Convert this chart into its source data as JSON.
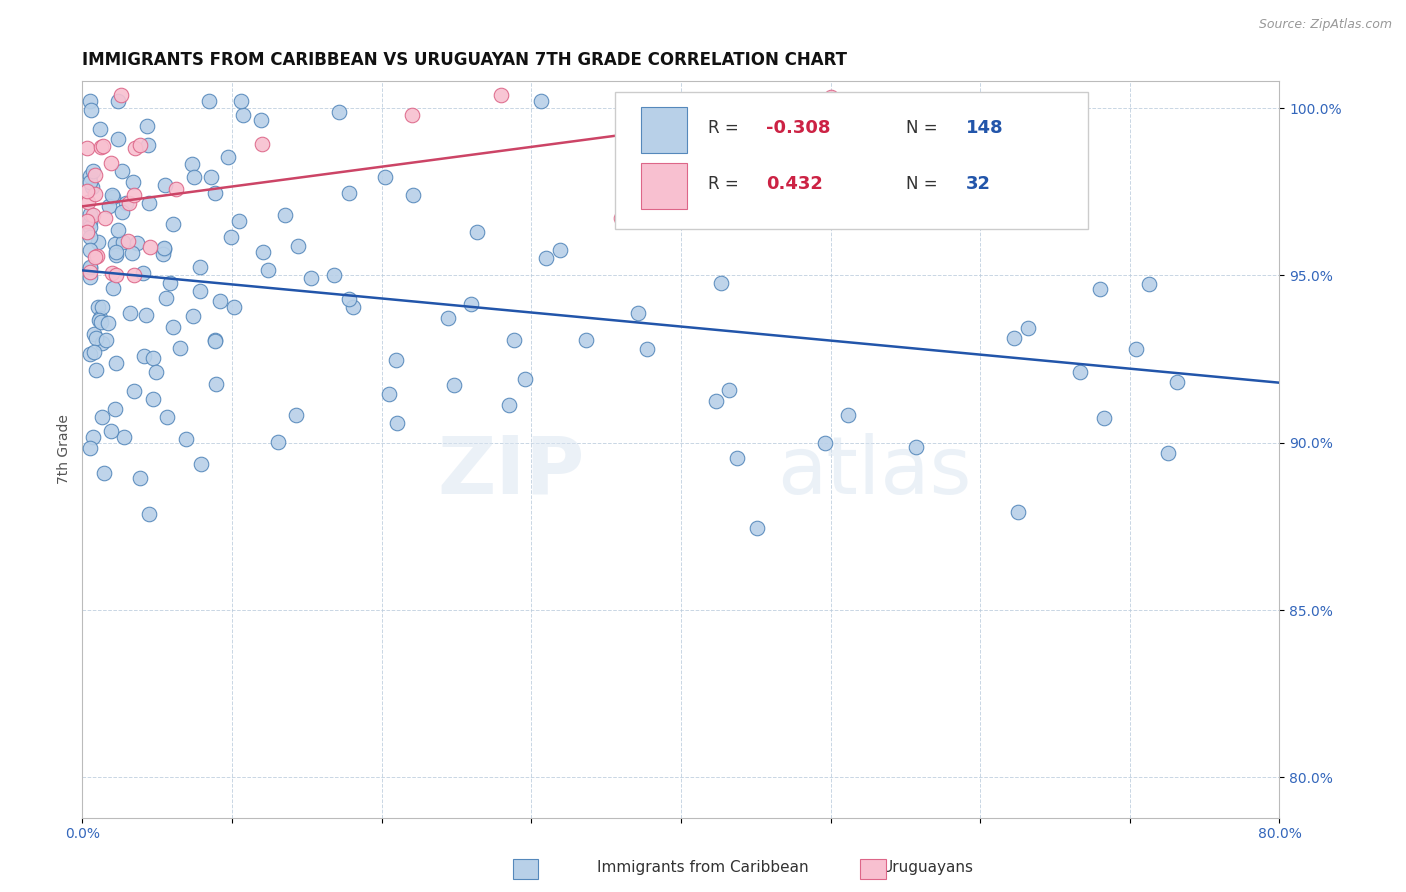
{
  "title": "IMMIGRANTS FROM CARIBBEAN VS URUGUAYAN 7TH GRADE CORRELATION CHART",
  "source": "Source: ZipAtlas.com",
  "ylabel": "7th Grade",
  "xlim": [
    0.0,
    0.8
  ],
  "ylim": [
    0.788,
    1.008
  ],
  "xticks": [
    0.0,
    0.1,
    0.2,
    0.3,
    0.4,
    0.5,
    0.6,
    0.7,
    0.8
  ],
  "xticklabels": [
    "0.0%",
    "",
    "",
    "",
    "",
    "",
    "",
    "",
    "80.0%"
  ],
  "yticks": [
    0.8,
    0.85,
    0.9,
    0.95,
    1.0
  ],
  "yticklabels": [
    "80.0%",
    "85.0%",
    "90.0%",
    "95.0%",
    "100.0%"
  ],
  "blue_color": "#b8d0e8",
  "blue_edge": "#5588bb",
  "pink_color": "#f8c0d0",
  "pink_edge": "#dd6688",
  "blue_line_color": "#2255aa",
  "pink_line_color": "#cc4466",
  "watermark_zip": "ZIP",
  "watermark_atlas": "atlas",
  "blue_N": 148,
  "pink_N": 32,
  "blue_R": -0.308,
  "pink_R": 0.432
}
